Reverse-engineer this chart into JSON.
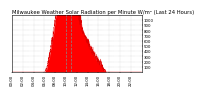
{
  "title": "Milwaukee Weather Solar Radiation per Minute W/m² (Last 24 Hours)",
  "background_color": "#ffffff",
  "plot_bg_color": "#ffffff",
  "grid_color": "#bbbbbb",
  "fill_color": "#ff0000",
  "line_color": "#dd0000",
  "dashed_line_color": "#888888",
  "ylim": [
    0,
    1100
  ],
  "yticks": [
    100,
    200,
    300,
    400,
    500,
    600,
    700,
    800,
    900,
    1000
  ],
  "num_points": 1440,
  "dashed_lines": [
    600,
    660
  ],
  "title_fontsize": 3.8,
  "tick_fontsize": 2.8,
  "sunrise": 360,
  "sunset": 1050
}
